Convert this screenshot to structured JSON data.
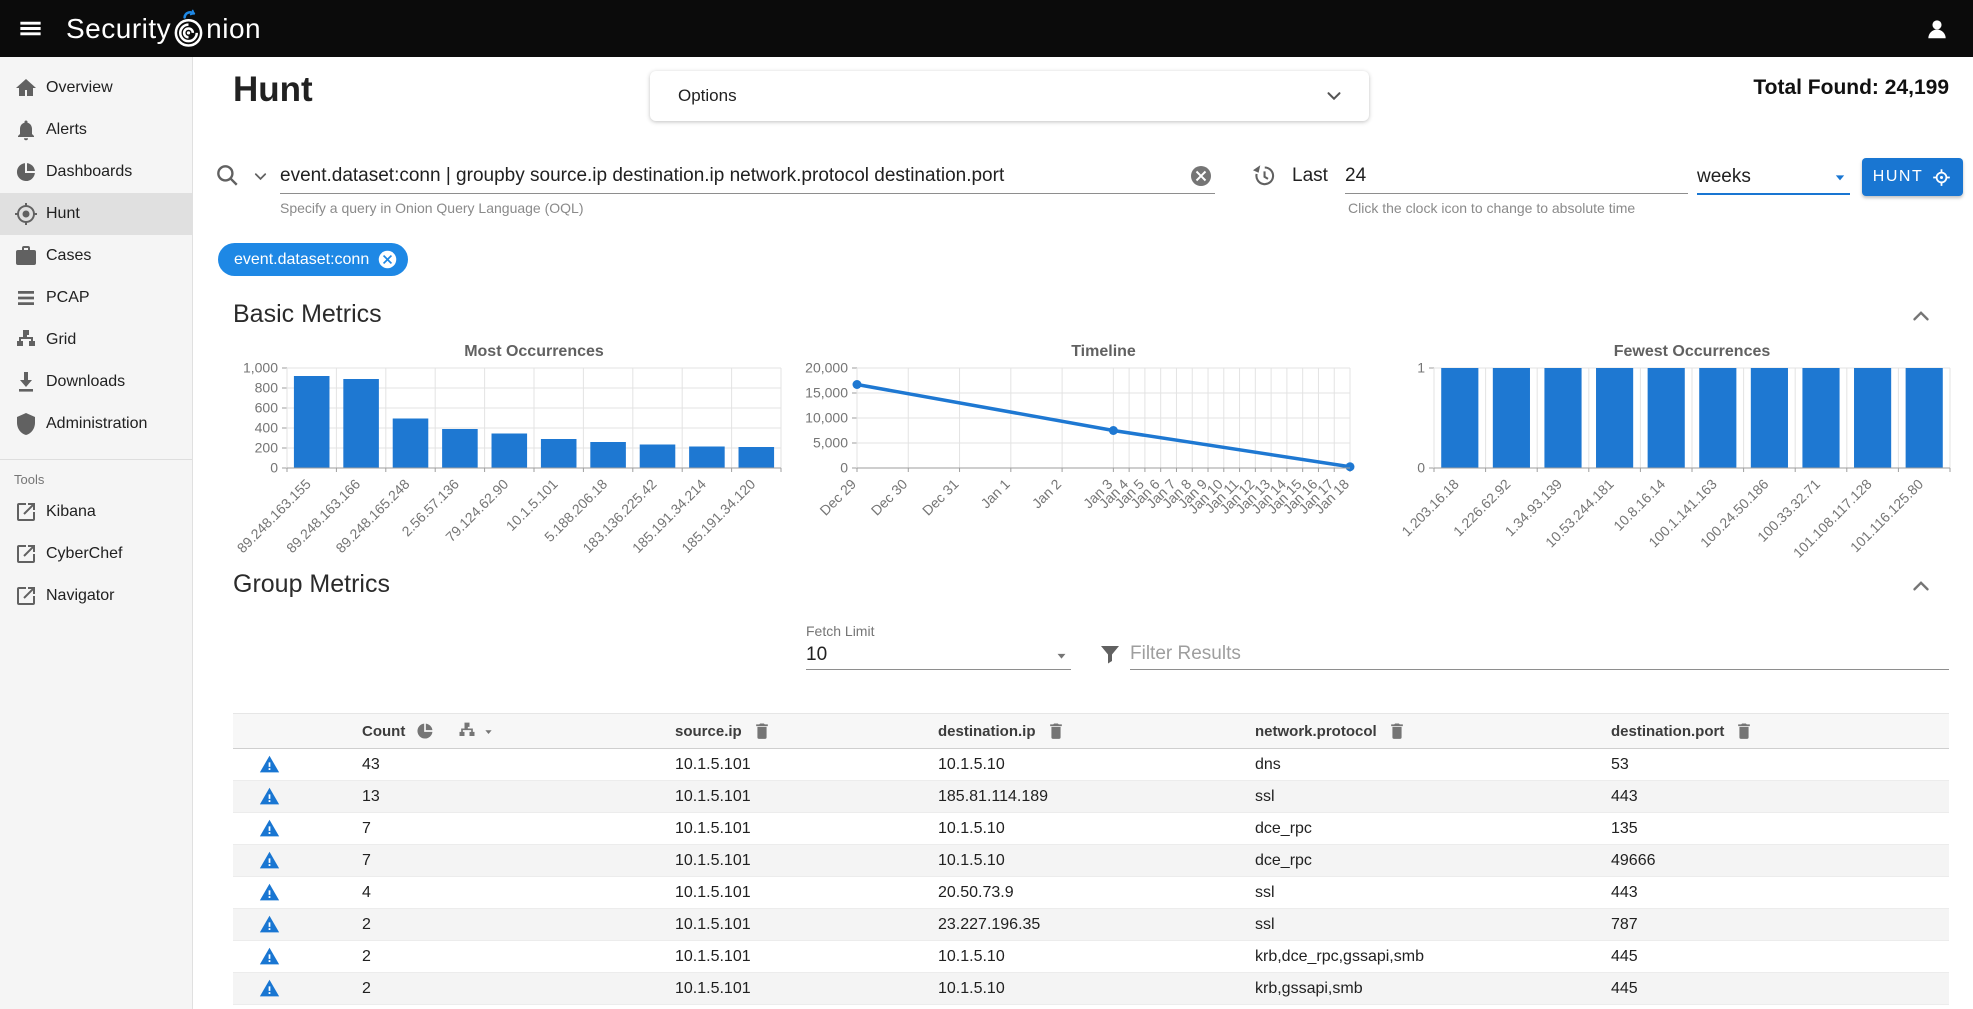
{
  "colors": {
    "primary": "#1976d2",
    "chip": "#1e88e5",
    "chart": "#1e78d2",
    "appbar": "#0b0b0b"
  },
  "app_bar": {
    "logo_text_left": "Security",
    "logo_text_right": "nion"
  },
  "sidebar": {
    "items": [
      {
        "label": "Overview",
        "icon": "home-icon",
        "active": false
      },
      {
        "label": "Alerts",
        "icon": "bell-icon",
        "active": false
      },
      {
        "label": "Dashboards",
        "icon": "pie-chart-icon",
        "active": false
      },
      {
        "label": "Hunt",
        "icon": "crosshair-icon",
        "active": true
      },
      {
        "label": "Cases",
        "icon": "briefcase-icon",
        "active": false
      },
      {
        "label": "PCAP",
        "icon": "lines-icon",
        "active": false
      },
      {
        "label": "Grid",
        "icon": "sitemap-icon",
        "active": false
      },
      {
        "label": "Downloads",
        "icon": "download-icon",
        "active": false
      },
      {
        "label": "Administration",
        "icon": "shield-icon",
        "active": false
      }
    ],
    "tools_header": "Tools",
    "tools": [
      {
        "label": "Kibana",
        "icon": "external-link-icon"
      },
      {
        "label": "CyberChef",
        "icon": "external-link-icon"
      },
      {
        "label": "Navigator",
        "icon": "external-link-icon"
      }
    ]
  },
  "header": {
    "page_title": "Hunt",
    "options_label": "Options",
    "total_found": "Total Found: 24,199"
  },
  "query": {
    "value": "event.dataset:conn | groupby source.ip destination.ip network.protocol destination.port",
    "hint": "Specify a query in Onion Query Language (OQL)",
    "time": {
      "prefix_label": "Last",
      "value": "24",
      "unit": "weeks",
      "hint": "Click the clock icon to change to absolute time"
    },
    "hunt_button_label": "HUNT"
  },
  "filter_chip": {
    "label": "event.dataset:conn"
  },
  "sections": {
    "basic_metrics": "Basic Metrics",
    "group_metrics": "Group Metrics"
  },
  "group_controls": {
    "fetch_limit_label": "Fetch Limit",
    "fetch_limit_value": "10",
    "filter_placeholder": "Filter Results"
  },
  "chart_data": [
    {
      "type": "bar",
      "title": "Most Occurrences",
      "categories": [
        "89.248.163.155",
        "89.248.163.166",
        "89.248.165.248",
        "2.56.57.136",
        "79.124.62.90",
        "10.1.5.101",
        "5.188.206.18",
        "183.136.225.42",
        "185.191.34.214",
        "185.191.34.120"
      ],
      "values": [
        920,
        890,
        495,
        390,
        345,
        290,
        260,
        235,
        215,
        210
      ],
      "yticks": [
        0,
        200,
        400,
        600,
        800,
        1000
      ],
      "ylim": [
        0,
        1000
      ],
      "grid": true,
      "xlabel": "",
      "ylabel": ""
    },
    {
      "type": "line",
      "title": "Timeline",
      "x_labels": [
        "Dec 29",
        "Dec 30",
        "Dec 31",
        "Jan 1",
        "Jan 2",
        "Jan 3",
        "Jan 4",
        "Jan 5",
        "Jan 6",
        "Jan 7",
        "Jan 8",
        "Jan 9",
        "Jan 10",
        "Jan 11",
        "Jan 12",
        "Jan 13",
        "Jan 14",
        "Jan 15",
        "Jan 16",
        "Jan 17",
        "Jan 18"
      ],
      "x_positions": [
        0,
        0.104,
        0.208,
        0.312,
        0.416,
        0.52,
        0.552,
        0.584,
        0.616,
        0.648,
        0.68,
        0.712,
        0.744,
        0.776,
        0.808,
        0.84,
        0.872,
        0.904,
        0.936,
        0.968,
        1
      ],
      "points": [
        {
          "x": 0,
          "y": 16700
        },
        {
          "x": 0.52,
          "y": 7500
        },
        {
          "x": 1,
          "y": 250
        }
      ],
      "yticks": [
        0,
        5000,
        10000,
        15000,
        20000
      ],
      "ylim": [
        0,
        20000
      ],
      "grid": true,
      "xlabel": "",
      "ylabel": ""
    },
    {
      "type": "bar",
      "title": "Fewest Occurrences",
      "categories": [
        "1.203.16.18",
        "1.226.62.92",
        "1.34.93.139",
        "10.53.244.181",
        "10.8.16.14",
        "100.1.141.163",
        "100.24.50.186",
        "100.33.32.71",
        "101.108.117.128",
        "101.116.125.80"
      ],
      "values": [
        1,
        1,
        1,
        1,
        1,
        1,
        1,
        1,
        1,
        1
      ],
      "yticks": [
        0,
        1
      ],
      "ylim": [
        0,
        1
      ],
      "grid": true,
      "xlabel": "",
      "ylabel": ""
    }
  ],
  "table": {
    "columns": [
      "Count",
      "source.ip",
      "destination.ip",
      "network.protocol",
      "destination.port"
    ],
    "rows": [
      {
        "count": "43",
        "source_ip": "10.1.5.101",
        "destination_ip": "10.1.5.10",
        "network_protocol": "dns",
        "destination_port": "53"
      },
      {
        "count": "13",
        "source_ip": "10.1.5.101",
        "destination_ip": "185.81.114.189",
        "network_protocol": "ssl",
        "destination_port": "443"
      },
      {
        "count": "7",
        "source_ip": "10.1.5.101",
        "destination_ip": "10.1.5.10",
        "network_protocol": "dce_rpc",
        "destination_port": "135"
      },
      {
        "count": "7",
        "source_ip": "10.1.5.101",
        "destination_ip": "10.1.5.10",
        "network_protocol": "dce_rpc",
        "destination_port": "49666"
      },
      {
        "count": "4",
        "source_ip": "10.1.5.101",
        "destination_ip": "20.50.73.9",
        "network_protocol": "ssl",
        "destination_port": "443"
      },
      {
        "count": "2",
        "source_ip": "10.1.5.101",
        "destination_ip": "23.227.196.35",
        "network_protocol": "ssl",
        "destination_port": "787"
      },
      {
        "count": "2",
        "source_ip": "10.1.5.101",
        "destination_ip": "10.1.5.10",
        "network_protocol": "krb,dce_rpc,gssapi,smb",
        "destination_port": "445"
      },
      {
        "count": "2",
        "source_ip": "10.1.5.101",
        "destination_ip": "10.1.5.10",
        "network_protocol": "krb,gssapi,smb",
        "destination_port": "445"
      }
    ]
  }
}
